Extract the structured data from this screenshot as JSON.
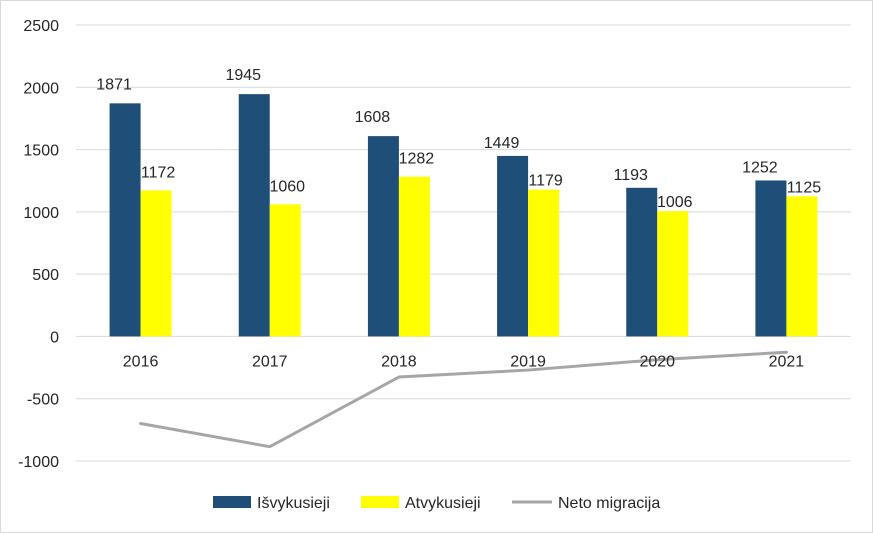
{
  "chart_data": {
    "type": "bar",
    "categories": [
      "2016",
      "2017",
      "2018",
      "2019",
      "2020",
      "2021"
    ],
    "series": [
      {
        "name": "Išvykusieji",
        "kind": "bar",
        "color": "#1f4e79",
        "values": [
          1871,
          1945,
          1608,
          1449,
          1193,
          1252
        ]
      },
      {
        "name": "Atvykusieji",
        "kind": "bar",
        "color": "#ffff00",
        "values": [
          1172,
          1060,
          1282,
          1179,
          1006,
          1125
        ]
      },
      {
        "name": "Neto migracija",
        "kind": "line",
        "color": "#a6a6a6",
        "values": [
          -699,
          -885,
          -326,
          -270,
          -187,
          -127
        ]
      }
    ],
    "yticks": [
      "2500",
      "2000",
      "1500",
      "1000",
      "500",
      "0",
      "-500",
      "-1000"
    ],
    "ylim": [
      -1000,
      2500
    ],
    "grid": true,
    "legend_position": "bottom"
  }
}
